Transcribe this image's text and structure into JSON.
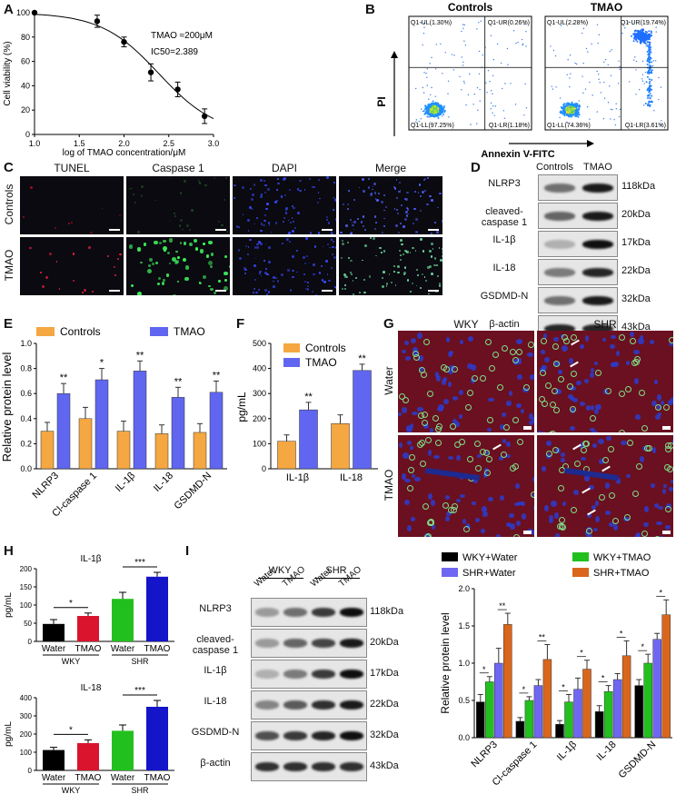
{
  "panels": {
    "a": "A",
    "b": "B",
    "c": "C",
    "d": "D",
    "e": "E",
    "f": "F",
    "g": "G",
    "h": "H",
    "i": "I"
  },
  "A": {
    "ylabel": "Cell viability (%)",
    "xlabel": "log of TMAO concentration/μM",
    "ann1": "TMAO ≈200μM",
    "ann2": "IC50=2.389",
    "yticks": [
      "0",
      "20",
      "40",
      "60",
      "80",
      "100"
    ],
    "xticks": [
      "1.0",
      "1.5",
      "2.0",
      "2.5",
      "3.0"
    ],
    "chart_data": {
      "type": "scatter",
      "x": [
        1.0,
        1.7,
        2.0,
        2.3,
        2.6,
        2.9
      ],
      "y": [
        100,
        93,
        76,
        51,
        37,
        15
      ],
      "err": [
        0,
        5,
        4,
        7,
        6,
        6
      ],
      "xlim": [
        1.0,
        3.0
      ],
      "ylim": [
        0,
        100
      ]
    }
  },
  "B": {
    "titles": [
      "Controls",
      "TMAO"
    ],
    "ylabel": "PI",
    "xlabel": "Annexin V-FITC",
    "ctrl": {
      "ul": "Q1-UL(1.30%)",
      "ur": "Q1-UR(0.26%)",
      "ll": "Q1-LL(97.25%)",
      "lr": "Q1-LR(1.18%)"
    },
    "tmao": {
      "ul": "Q1-UL(2.28%)",
      "ur": "Q1-UR(19.74%)",
      "ll": "Q1-LL(74.36%)",
      "lr": "Q1-LR(3.61%)"
    }
  },
  "C": {
    "cols": [
      "TUNEL",
      "Caspase 1",
      "DAPI",
      "Merge"
    ],
    "rows": [
      "Controls",
      "TMAO"
    ]
  },
  "D": {
    "cols": [
      "Controls",
      "TMAO"
    ],
    "rows": [
      {
        "name": "NLRP3",
        "kda": "118kDa"
      },
      {
        "name": "cleaved-\ncaspase 1",
        "kda": "20kDa"
      },
      {
        "name": "IL-1β",
        "kda": "17kDa"
      },
      {
        "name": "IL-18",
        "kda": "22kDa"
      },
      {
        "name": "GSDMD-N",
        "kda": "32kDa"
      },
      {
        "name": "β-actin",
        "kda": "43kDa"
      }
    ]
  },
  "E": {
    "ylabel": "Relative protein level",
    "legend": [
      "Controls",
      "TMAO"
    ],
    "yticks": [
      "0.0",
      "0.2",
      "0.4",
      "0.6",
      "0.8",
      "1.0"
    ],
    "chart_data": {
      "type": "bar",
      "categories": [
        "NLRP3",
        "Cl-caspase 1",
        "IL-1β",
        "IL-18",
        "GSDMD-N"
      ],
      "series": [
        {
          "name": "Controls",
          "values": [
            0.3,
            0.4,
            0.3,
            0.28,
            0.29
          ],
          "err": [
            0.07,
            0.09,
            0.08,
            0.07,
            0.07
          ]
        },
        {
          "name": "TMAO",
          "values": [
            0.6,
            0.71,
            0.78,
            0.57,
            0.61
          ],
          "err": [
            0.08,
            0.09,
            0.08,
            0.08,
            0.09
          ]
        }
      ],
      "sig": [
        "**",
        "*",
        "**",
        "**",
        "**"
      ],
      "ylim": [
        0,
        1.0
      ]
    }
  },
  "F": {
    "ylabel": "pg/mL",
    "legend": [
      "Controls",
      "TMAO"
    ],
    "yticks": [
      "0",
      "100",
      "200",
      "300",
      "400",
      "500"
    ],
    "chart_data": {
      "type": "bar",
      "categories": [
        "IL-1β",
        "IL-18"
      ],
      "series": [
        {
          "name": "Controls",
          "values": [
            110,
            180
          ],
          "err": [
            25,
            35
          ]
        },
        {
          "name": "TMAO",
          "values": [
            235,
            392
          ],
          "err": [
            30,
            25
          ]
        }
      ],
      "sig": [
        "**",
        "**"
      ],
      "ylim": [
        0,
        500
      ]
    }
  },
  "G": {
    "cols": [
      "WKY",
      "SHR"
    ],
    "rows": [
      "Water",
      "TMAO"
    ]
  },
  "H": {
    "charts": [
      {
        "title": "IL-1β",
        "ylabel": "pg/mL",
        "yticks": [
          "0",
          "50",
          "100",
          "150",
          "200"
        ],
        "chart_data": {
          "type": "bar",
          "categories": [
            "Water",
            "TMAO",
            "Water",
            "TMAO"
          ],
          "values": [
            48,
            70,
            117,
            178
          ],
          "err": [
            12,
            8,
            18,
            12
          ],
          "ylim": [
            0,
            200
          ]
        },
        "sig": [
          "*",
          "***"
        ],
        "groups": [
          "WKY",
          "SHR"
        ]
      },
      {
        "title": "IL-18",
        "ylabel": "pg/mL",
        "yticks": [
          "0",
          "100",
          "200",
          "300",
          "400"
        ],
        "chart_data": {
          "type": "bar",
          "categories": [
            "Water",
            "TMAO",
            "Water",
            "TMAO"
          ],
          "values": [
            112,
            150,
            218,
            350
          ],
          "err": [
            15,
            18,
            32,
            35
          ],
          "ylim": [
            0,
            400
          ]
        },
        "sig": [
          "*",
          "***"
        ],
        "groups": [
          "WKY",
          "SHR"
        ]
      }
    ]
  },
  "I": {
    "groups": [
      "WKY",
      "SHR"
    ],
    "lanes": [
      "Water",
      "TMAO",
      "Water",
      "TMAO"
    ],
    "rows": [
      {
        "name": "NLRP3",
        "kda": "118kDa"
      },
      {
        "name": "cleaved-\ncaspase 1",
        "kda": "20kDa"
      },
      {
        "name": "IL-1β",
        "kda": "17kDa"
      },
      {
        "name": "IL-18",
        "kda": "22kDa"
      },
      {
        "name": "GSDMD-N",
        "kda": "32kDa"
      },
      {
        "name": "β-actin",
        "kda": "43kDa"
      }
    ],
    "ylabel": "Relative protein level",
    "legend": [
      "WKY+Water",
      "WKY+TMAO",
      "SHR+Water",
      "SHR+TMAO"
    ],
    "colors": [
      "#000000",
      "#22c01e",
      "#6f67f2",
      "#d9661c"
    ],
    "yticks": [
      "0.0",
      "0.5",
      "1.0",
      "1.5",
      "2.0"
    ],
    "chart_data": {
      "type": "bar",
      "categories": [
        "NLRP3",
        "Cl-caspase 1",
        "IL-1β",
        "IL-18",
        "GSDMD-N"
      ],
      "series": [
        {
          "name": "WKY+Water",
          "values": [
            0.48,
            0.22,
            0.18,
            0.35,
            0.7
          ],
          "err": [
            0.1,
            0.05,
            0.05,
            0.08,
            0.08
          ]
        },
        {
          "name": "WKY+TMAO",
          "values": [
            0.75,
            0.5,
            0.48,
            0.62,
            1.0
          ],
          "err": [
            0.07,
            0.05,
            0.1,
            0.08,
            0.12
          ]
        },
        {
          "name": "SHR+Water",
          "values": [
            1.0,
            0.7,
            0.65,
            0.78,
            1.32
          ],
          "err": [
            0.2,
            0.08,
            0.15,
            0.08,
            0.08
          ]
        },
        {
          "name": "SHR+TMAO",
          "values": [
            1.52,
            1.05,
            0.92,
            1.1,
            1.65
          ],
          "err": [
            0.15,
            0.2,
            0.12,
            0.2,
            0.2
          ]
        }
      ],
      "sig_low": [
        "*",
        "*",
        "*",
        "*",
        "*"
      ],
      "sig_high": [
        "**",
        "**",
        "*",
        "*",
        "*"
      ],
      "ylim": [
        0,
        2.0
      ]
    }
  },
  "colors": {
    "orange": "#f5a742",
    "blue": "#6066f0",
    "hblack": "#000000",
    "hred": "#d9142c",
    "hgreen": "#22c01e",
    "hblue": "#1414c8"
  }
}
